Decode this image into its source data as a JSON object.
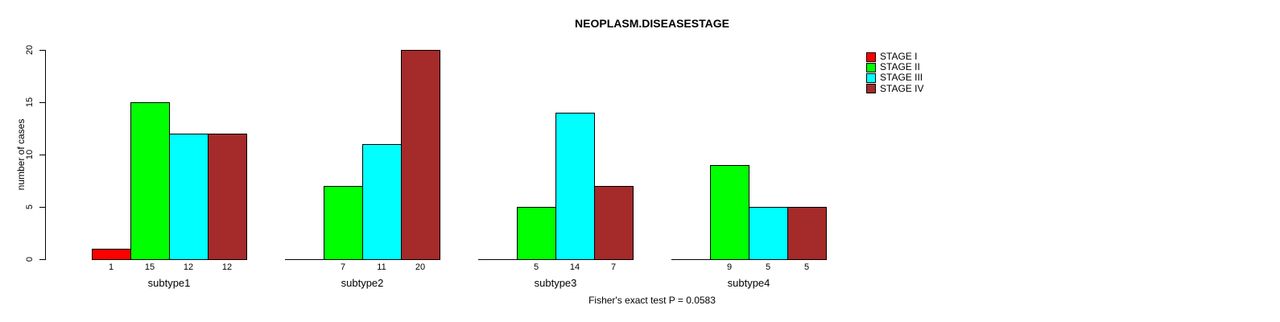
{
  "title": "NEOPLASM.DISEASESTAGE",
  "ylabel": "number of cases",
  "footer": "Fisher's exact test P = 0.0583",
  "chart_data": {
    "type": "bar",
    "title": "NEOPLASM.DISEASESTAGE",
    "xlabel": "",
    "ylabel": "number of cases",
    "categories": [
      "subtype1",
      "subtype2",
      "subtype3",
      "subtype4"
    ],
    "series": [
      {
        "name": "STAGE I",
        "color": "#ff0000",
        "values": [
          1,
          0,
          0,
          0
        ]
      },
      {
        "name": "STAGE II",
        "color": "#00ff00",
        "values": [
          15,
          7,
          5,
          9
        ]
      },
      {
        "name": "STAGE III",
        "color": "#00ffff",
        "values": [
          12,
          11,
          14,
          5
        ]
      },
      {
        "name": "STAGE IV",
        "color": "#a52a2a",
        "values": [
          12,
          20,
          7,
          5
        ]
      }
    ],
    "bar_value_labels": [
      [
        "1",
        "15",
        "12",
        "12"
      ],
      [
        "7",
        "11",
        "20"
      ],
      [
        "5",
        "14",
        "7"
      ],
      [
        "9",
        "5",
        "5"
      ]
    ],
    "yticks": [
      "0",
      "5",
      "10",
      "15",
      "20"
    ],
    "ylim": [
      0,
      20
    ],
    "grid": false,
    "legend_position": "top-right",
    "annotation": "Fisher's exact test P = 0.0583"
  }
}
